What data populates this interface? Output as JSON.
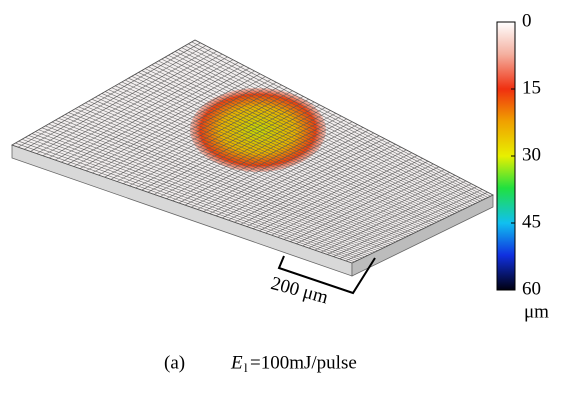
{
  "colorbar": {
    "lim": [
      0,
      60
    ],
    "ticks": [
      0,
      15,
      30,
      45,
      60
    ],
    "unit": "μm"
  },
  "scale_bar": {
    "label": "200 μm"
  },
  "caption": {
    "label": "(a)",
    "symbol": "E",
    "subscript": "l",
    "text": "=100mJ/pulse"
  }
}
